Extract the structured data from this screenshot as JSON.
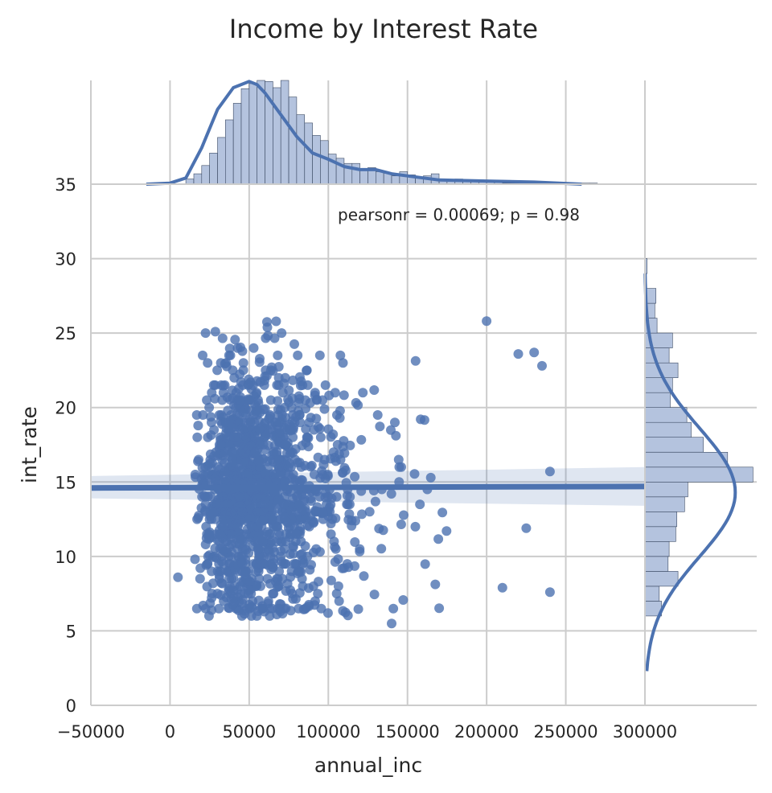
{
  "chart_data": {
    "type": "scatter",
    "title": "Income by Interest Rate",
    "xlabel": "annual_inc",
    "ylabel": "int_rate",
    "xlim": [
      -50000,
      300000
    ],
    "ylim": [
      0,
      35
    ],
    "xticks": [
      -50000,
      0,
      50000,
      100000,
      150000,
      200000,
      250000,
      300000
    ],
    "xtick_labels": [
      "−50000",
      "0",
      "50000",
      "100000",
      "150000",
      "200000",
      "250000",
      "300000"
    ],
    "yticks": [
      0,
      5,
      10,
      15,
      20,
      25,
      30,
      35
    ],
    "ytick_labels": [
      "0",
      "5",
      "10",
      "15",
      "20",
      "25",
      "30",
      "35"
    ],
    "annotation": "pearsonr = 0.00069; p = 0.98",
    "grid": true,
    "colors": {
      "points": "#4c72b0",
      "hist_fill": "#b4c3de",
      "regression": "#4c72b0",
      "grid": "#cccccc"
    },
    "regression": {
      "x_range": [
        -50000,
        300000
      ],
      "y_start": 14.6,
      "y_end": 14.7,
      "ci_at_xmin": [
        13.9,
        15.4
      ],
      "ci_at_xmax": [
        13.4,
        16.0
      ]
    },
    "points_summary": {
      "x_mode": 55000,
      "x_main_range": [
        15000,
        105000
      ],
      "y_main_range": [
        6,
        26
      ],
      "sample_points": [
        [
          200000,
          25.8
        ],
        [
          220000,
          23.6
        ],
        [
          230000,
          23.7
        ],
        [
          235000,
          22.8
        ],
        [
          240000,
          15.7
        ],
        [
          225000,
          11.9
        ],
        [
          210000,
          7.9
        ],
        [
          240000,
          7.6
        ],
        [
          5000,
          8.6
        ],
        [
          140000,
          5.5
        ]
      ]
    },
    "x_marginal": {
      "bin_edges_start": 10000,
      "bin_width": 5000,
      "density": [
        0.05,
        0.1,
        0.18,
        0.3,
        0.45,
        0.62,
        0.78,
        0.92,
        0.97,
        1.0,
        0.99,
        0.93,
        1.0,
        0.84,
        0.67,
        0.59,
        0.47,
        0.42,
        0.29,
        0.25,
        0.2,
        0.2,
        0.15,
        0.16,
        0.12,
        0.11,
        0.08,
        0.12,
        0.09,
        0.06,
        0.08,
        0.1,
        0.05,
        0.04,
        0.05,
        0.04,
        0.03,
        0.02,
        0.02,
        0.02,
        0.01,
        0.01,
        0.01,
        0.01,
        0.01,
        0.01,
        0.01,
        0.01,
        0.01,
        0.01,
        0.01,
        0.01
      ],
      "kde_x": [
        -15000,
        0,
        10000,
        20000,
        30000,
        40000,
        50000,
        55000,
        60000,
        70000,
        80000,
        90000,
        100000,
        110000,
        120000,
        130000,
        140000,
        150000,
        170000,
        200000,
        230000,
        260000
      ],
      "kde_y": [
        0.0,
        0.01,
        0.06,
        0.35,
        0.72,
        0.93,
        0.99,
        0.96,
        0.88,
        0.67,
        0.46,
        0.3,
        0.24,
        0.17,
        0.14,
        0.14,
        0.1,
        0.08,
        0.04,
        0.03,
        0.02,
        0.0
      ]
    },
    "y_marginal": {
      "bin_edges_start": 6,
      "bin_width": 1,
      "density": [
        0.15,
        0.13,
        0.3,
        0.21,
        0.22,
        0.28,
        0.29,
        0.36,
        0.39,
        0.98,
        0.75,
        0.53,
        0.42,
        0.38,
        0.23,
        0.25,
        0.3,
        0.22,
        0.25,
        0.11,
        0.09,
        0.1,
        0.0,
        0.02
      ]
    }
  }
}
